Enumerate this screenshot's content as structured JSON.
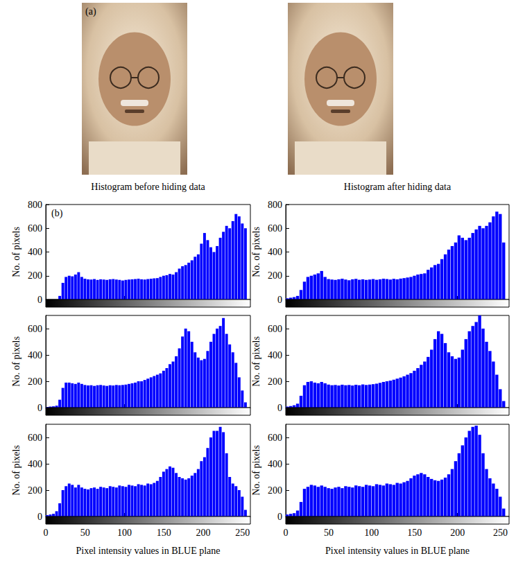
{
  "photos": {
    "label": "(a)"
  },
  "chart_data": [
    {
      "type": "histogram",
      "title": "Histogram before hiding data",
      "annotation": "(b)",
      "ylabel": "No. of pixels",
      "color": "#0000ff",
      "bins": [
        0,
        4,
        8,
        12,
        16,
        20,
        24,
        28,
        32,
        36,
        40,
        44,
        48,
        52,
        56,
        60,
        64,
        68,
        72,
        76,
        80,
        84,
        88,
        92,
        96,
        100,
        104,
        108,
        112,
        116,
        120,
        124,
        128,
        132,
        136,
        140,
        144,
        148,
        152,
        156,
        160,
        164,
        168,
        172,
        176,
        180,
        184,
        188,
        192,
        196,
        200,
        204,
        208,
        212,
        216,
        220,
        224,
        228,
        232,
        236,
        240,
        244,
        248,
        252,
        256
      ],
      "values": [
        0,
        0,
        0,
        0,
        30,
        140,
        190,
        200,
        195,
        210,
        230,
        190,
        175,
        170,
        168,
        172,
        165,
        170,
        168,
        165,
        170,
        172,
        168,
        165,
        160,
        165,
        168,
        170,
        172,
        175,
        170,
        168,
        172,
        175,
        178,
        180,
        190,
        200,
        205,
        215,
        210,
        230,
        260,
        280,
        290,
        310,
        330,
        360,
        380,
        470,
        560,
        500,
        440,
        400,
        450,
        520,
        570,
        620,
        600,
        660,
        720,
        700,
        640,
        600
      ],
      "xlim": [
        0,
        260
      ],
      "xticks": [
        0,
        50,
        100,
        150,
        200,
        250
      ],
      "ylim": [
        0,
        800
      ],
      "yticks": [
        0,
        200,
        400,
        600,
        800
      ],
      "grid": false,
      "tick_labels": "y"
    },
    {
      "type": "histogram",
      "title": "Histogram after hiding data",
      "ylabel": "No. of pixels",
      "color": "#0000ff",
      "bins": [
        0,
        4,
        8,
        12,
        16,
        20,
        24,
        28,
        32,
        36,
        40,
        44,
        48,
        52,
        56,
        60,
        64,
        68,
        72,
        76,
        80,
        84,
        88,
        92,
        96,
        100,
        104,
        108,
        112,
        116,
        120,
        124,
        128,
        132,
        136,
        140,
        144,
        148,
        152,
        156,
        160,
        164,
        168,
        172,
        176,
        180,
        184,
        188,
        192,
        196,
        200,
        204,
        208,
        212,
        216,
        220,
        224,
        228,
        232,
        236,
        240,
        244,
        248,
        252,
        256
      ],
      "values": [
        10,
        15,
        20,
        30,
        80,
        150,
        190,
        200,
        210,
        220,
        240,
        190,
        172,
        168,
        165,
        170,
        175,
        168,
        162,
        170,
        174,
        166,
        170,
        165,
        168,
        172,
        166,
        170,
        175,
        172,
        168,
        174,
        170,
        176,
        180,
        185,
        190,
        200,
        210,
        215,
        220,
        250,
        270,
        290,
        300,
        340,
        380,
        420,
        450,
        480,
        540,
        520,
        500,
        520,
        560,
        590,
        620,
        600,
        620,
        650,
        700,
        740,
        720,
        480
      ],
      "xlim": [
        0,
        260
      ],
      "xticks": [
        0,
        50,
        100,
        150,
        200,
        250
      ],
      "ylim": [
        0,
        800
      ],
      "yticks": [
        0,
        200,
        400,
        600,
        800
      ],
      "grid": false,
      "tick_labels": "y"
    },
    {
      "type": "histogram",
      "ylabel": "No. of pixels",
      "color": "#0000ff",
      "bins": [
        0,
        4,
        8,
        12,
        16,
        20,
        24,
        28,
        32,
        36,
        40,
        44,
        48,
        52,
        56,
        60,
        64,
        68,
        72,
        76,
        80,
        84,
        88,
        92,
        96,
        100,
        104,
        108,
        112,
        116,
        120,
        124,
        128,
        132,
        136,
        140,
        144,
        148,
        152,
        156,
        160,
        164,
        168,
        172,
        176,
        180,
        184,
        188,
        192,
        196,
        200,
        204,
        208,
        212,
        216,
        220,
        224,
        228,
        232,
        236,
        240,
        244,
        248,
        252,
        256
      ],
      "values": [
        5,
        8,
        10,
        15,
        60,
        150,
        190,
        190,
        185,
        180,
        190,
        180,
        172,
        168,
        170,
        165,
        170,
        172,
        168,
        165,
        170,
        168,
        172,
        170,
        172,
        175,
        180,
        185,
        190,
        200,
        200,
        210,
        220,
        230,
        240,
        250,
        260,
        280,
        300,
        330,
        350,
        390,
        450,
        540,
        600,
        580,
        500,
        420,
        380,
        360,
        370,
        430,
        500,
        560,
        600,
        620,
        680,
        560,
        480,
        420,
        340,
        230,
        130,
        40
      ],
      "xlim": [
        0,
        260
      ],
      "xticks": [
        0,
        50,
        100,
        150,
        200,
        250
      ],
      "ylim": [
        0,
        700
      ],
      "yticks": [
        0,
        200,
        400,
        600
      ],
      "grid": false,
      "tick_labels": "y"
    },
    {
      "type": "histogram",
      "ylabel": "No. of pixels",
      "color": "#0000ff",
      "bins": [
        0,
        4,
        8,
        12,
        16,
        20,
        24,
        28,
        32,
        36,
        40,
        44,
        48,
        52,
        56,
        60,
        64,
        68,
        72,
        76,
        80,
        84,
        88,
        92,
        96,
        100,
        104,
        108,
        112,
        116,
        120,
        124,
        128,
        132,
        136,
        140,
        144,
        148,
        152,
        156,
        160,
        164,
        168,
        172,
        176,
        180,
        184,
        188,
        192,
        196,
        200,
        204,
        208,
        212,
        216,
        220,
        224,
        228,
        232,
        236,
        240,
        244,
        248,
        252,
        256
      ],
      "values": [
        8,
        12,
        18,
        30,
        90,
        170,
        195,
        200,
        190,
        185,
        195,
        185,
        175,
        170,
        172,
        168,
        174,
        170,
        172,
        168,
        174,
        170,
        176,
        172,
        175,
        178,
        182,
        188,
        195,
        200,
        205,
        212,
        220,
        228,
        238,
        250,
        262,
        280,
        300,
        325,
        350,
        385,
        440,
        520,
        580,
        560,
        490,
        420,
        390,
        370,
        380,
        440,
        520,
        580,
        620,
        650,
        700,
        600,
        500,
        430,
        350,
        250,
        140,
        50
      ],
      "xlim": [
        0,
        260
      ],
      "xticks": [
        0,
        50,
        100,
        150,
        200,
        250
      ],
      "ylim": [
        0,
        700
      ],
      "yticks": [
        0,
        200,
        400,
        600
      ],
      "grid": false,
      "tick_labels": "y"
    },
    {
      "type": "histogram",
      "ylabel": "No. of pixels",
      "xlabel": "Pixel intensity values in BLUE plane",
      "color": "#0000ff",
      "bins": [
        0,
        4,
        8,
        12,
        16,
        20,
        24,
        28,
        32,
        36,
        40,
        44,
        48,
        52,
        56,
        60,
        64,
        68,
        72,
        76,
        80,
        84,
        88,
        92,
        96,
        100,
        104,
        108,
        112,
        116,
        120,
        124,
        128,
        132,
        136,
        140,
        144,
        148,
        152,
        156,
        160,
        164,
        168,
        172,
        176,
        180,
        184,
        188,
        192,
        196,
        200,
        204,
        208,
        212,
        216,
        220,
        224,
        228,
        232,
        236,
        240,
        244,
        248,
        252,
        256
      ],
      "values": [
        10,
        15,
        20,
        40,
        100,
        200,
        230,
        250,
        240,
        220,
        240,
        220,
        210,
        205,
        215,
        220,
        210,
        225,
        220,
        215,
        230,
        225,
        220,
        235,
        230,
        225,
        240,
        235,
        230,
        245,
        240,
        235,
        250,
        245,
        255,
        270,
        300,
        340,
        360,
        380,
        370,
        330,
        300,
        290,
        280,
        290,
        310,
        330,
        360,
        420,
        450,
        520,
        600,
        650,
        650,
        680,
        640,
        480,
        300,
        250,
        230,
        200,
        150,
        50
      ],
      "xlim": [
        0,
        260
      ],
      "xticks": [
        0,
        50,
        100,
        150,
        200,
        250
      ],
      "ylim": [
        0,
        700
      ],
      "yticks": [
        0,
        200,
        400,
        600
      ],
      "grid": false
    },
    {
      "type": "histogram",
      "ylabel": "No. of pixels",
      "xlabel": "Pixel intensity values in BLUE plane",
      "color": "#0000ff",
      "bins": [
        0,
        4,
        8,
        12,
        16,
        20,
        24,
        28,
        32,
        36,
        40,
        44,
        48,
        52,
        56,
        60,
        64,
        68,
        72,
        76,
        80,
        84,
        88,
        92,
        96,
        100,
        104,
        108,
        112,
        116,
        120,
        124,
        128,
        132,
        136,
        140,
        144,
        148,
        152,
        156,
        160,
        164,
        168,
        172,
        176,
        180,
        184,
        188,
        192,
        196,
        200,
        204,
        208,
        212,
        216,
        220,
        224,
        228,
        232,
        236,
        240,
        244,
        248,
        252,
        256
      ],
      "values": [
        15,
        20,
        25,
        45,
        110,
        210,
        225,
        240,
        235,
        225,
        235,
        225,
        215,
        210,
        220,
        225,
        215,
        230,
        225,
        220,
        235,
        230,
        225,
        240,
        235,
        230,
        245,
        240,
        235,
        250,
        245,
        240,
        255,
        250,
        260,
        270,
        290,
        310,
        320,
        330,
        320,
        300,
        285,
        275,
        270,
        280,
        295,
        320,
        360,
        420,
        480,
        540,
        600,
        650,
        680,
        690,
        620,
        480,
        360,
        290,
        250,
        210,
        150,
        60
      ],
      "xlim": [
        0,
        260
      ],
      "xticks": [
        0,
        50,
        100,
        150,
        200,
        250
      ],
      "ylim": [
        0,
        700
      ],
      "yticks": [
        0,
        200,
        400,
        600
      ],
      "grid": false
    }
  ]
}
